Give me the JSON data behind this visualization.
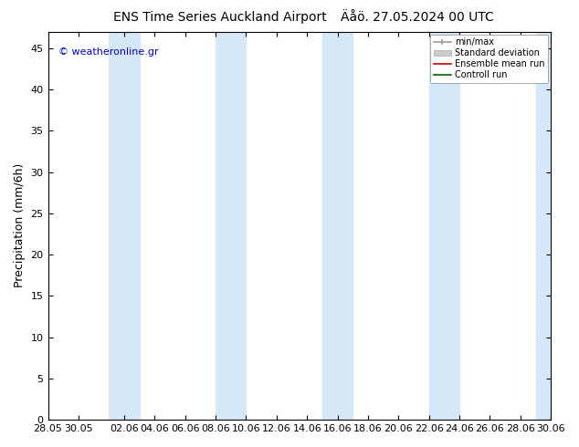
{
  "title": "ENS Time Series Auckland Airport",
  "title2": "Äåö. 27.05.2024 00 UTC",
  "ylabel": "Precipitation (mm/6h)",
  "copyright": "© weatheronline.gr",
  "ylim": [
    0,
    47
  ],
  "yticks": [
    0,
    5,
    10,
    15,
    20,
    25,
    30,
    35,
    40,
    45
  ],
  "x_tick_labels": [
    "28.05",
    "30.05",
    "02.06",
    "04.06",
    "06.06",
    "08.06",
    "10.06",
    "12.06",
    "14.06",
    "16.06",
    "18.06",
    "20.06",
    "22.06",
    "24.06",
    "26.06",
    "28.06",
    "30.06"
  ],
  "band_color": "#d6e8f7",
  "bg_color": "#ffffff",
  "plot_bg": "#ffffff",
  "title_fontsize": 10,
  "tick_fontsize": 8,
  "ylabel_fontsize": 9,
  "copyright_color": "#0000cc",
  "legend_items": [
    "min/max",
    "Standard deviation",
    "Ensemble mean run",
    "Controll run"
  ],
  "band_spans": [
    [
      1.0,
      3.0
    ],
    [
      7.5,
      10.5
    ],
    [
      14.5,
      17.5
    ],
    [
      21.5,
      24.5
    ],
    [
      28.5,
      33.0
    ]
  ],
  "x_pos_map": {
    "28.05": 0,
    "30.05": 2,
    "02.06": 5,
    "04.06": 7,
    "06.06": 9,
    "08.06": 11,
    "10.06": 13,
    "12.06": 15,
    "14.06": 17,
    "16.06": 19,
    "18.06": 21,
    "20.06": 23,
    "22.06": 25,
    "24.06": 27,
    "26.06": 29,
    "28.06": 31,
    "30.06": 33
  },
  "xmin": 0,
  "xmax": 33
}
